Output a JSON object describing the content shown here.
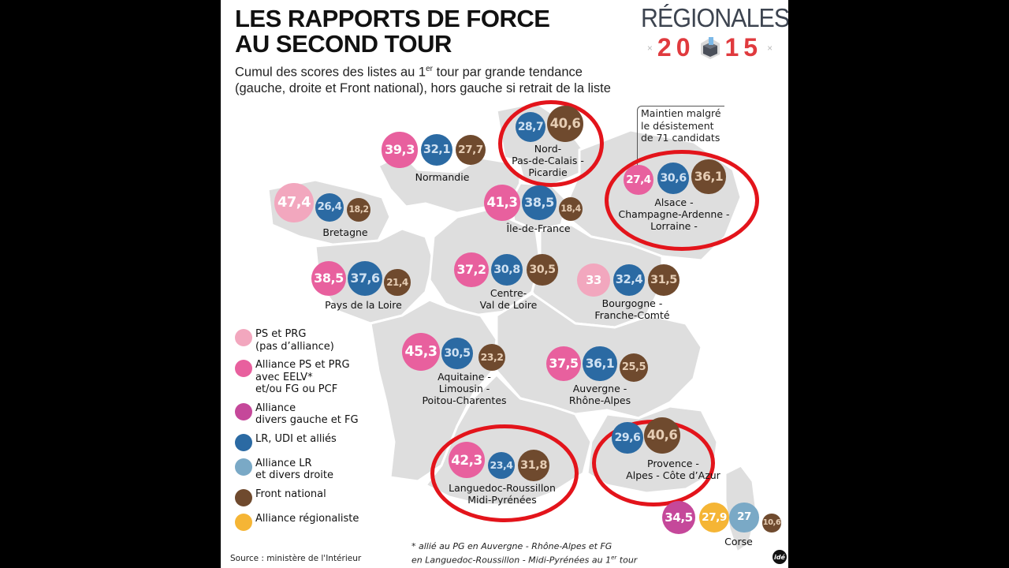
{
  "header": {
    "title_line1": "LES RAPPORTS DE FORCE",
    "title_line2": "AU SECOND TOUR",
    "subtitle_line1_pre": "Cumul des scores des listes au 1",
    "subtitle_line1_sup": "er",
    "subtitle_line1_post": " tour par grande tendance",
    "subtitle_line2": "(gauche, droite et Front national), hors gauche si retrait de la liste"
  },
  "logo": {
    "word": "RÉGIONALES",
    "year_left": "20",
    "year_right": "15",
    "icon": "ballot-box-icon"
  },
  "colors": {
    "ps_prg": "#f2a7be",
    "alliance_ps": "#e8609e",
    "alliance_dvg_fg": "#c5489a",
    "lr_udi": "#2b6aa3",
    "alliance_lr_dvd": "#7aa9c6",
    "fn": "#6f4a2e",
    "regionaliste": "#f5b535",
    "highlight_ring": "#e3141b",
    "map_fill": "#dedede",
    "fn_text": "#e6cdb4",
    "lr_text": "#cfe1f2"
  },
  "callout": {
    "line1": "Maintien malgré",
    "line2": "le désistement",
    "line3": "de 71 candidats"
  },
  "regions": [
    {
      "name_lines": [
        "Normandie"
      ],
      "scores": [
        {
          "v": "39,3",
          "party": "alliance_ps"
        },
        {
          "v": "32,1",
          "party": "lr_udi"
        },
        {
          "v": "27,7",
          "party": "fn"
        }
      ],
      "highlighted": false
    },
    {
      "name_lines": [
        "Nord-",
        "Pas-de-Calais -",
        "Picardie"
      ],
      "scores": [
        {
          "v": "28,7",
          "party": "lr_udi"
        },
        {
          "v": "40,6",
          "party": "fn"
        }
      ],
      "highlighted": true
    },
    {
      "name_lines": [
        "Bretagne"
      ],
      "scores": [
        {
          "v": "47,4",
          "party": "ps_prg"
        },
        {
          "v": "26,4",
          "party": "lr_udi"
        },
        {
          "v": "18,2",
          "party": "fn"
        }
      ],
      "highlighted": false
    },
    {
      "name_lines": [
        "Île-de-France"
      ],
      "scores": [
        {
          "v": "41,3",
          "party": "alliance_ps"
        },
        {
          "v": "38,5",
          "party": "lr_udi"
        },
        {
          "v": "18,4",
          "party": "fn"
        }
      ],
      "highlighted": false
    },
    {
      "name_lines": [
        "Alsace -",
        "Champagne-Ardenne -",
        "Lorraine -"
      ],
      "scores": [
        {
          "v": "27,4",
          "party": "alliance_ps"
        },
        {
          "v": "30,6",
          "party": "lr_udi"
        },
        {
          "v": "36,1",
          "party": "fn"
        }
      ],
      "highlighted": true
    },
    {
      "name_lines": [
        "Pays de la Loire"
      ],
      "scores": [
        {
          "v": "38,5",
          "party": "alliance_ps"
        },
        {
          "v": "37,6",
          "party": "lr_udi"
        },
        {
          "v": "21,4",
          "party": "fn"
        }
      ],
      "highlighted": false
    },
    {
      "name_lines": [
        "Centre-",
        "Val de Loire"
      ],
      "scores": [
        {
          "v": "37,2",
          "party": "alliance_ps"
        },
        {
          "v": "30,8",
          "party": "lr_udi"
        },
        {
          "v": "30,5",
          "party": "fn"
        }
      ],
      "highlighted": false
    },
    {
      "name_lines": [
        "Bourgogne -",
        "Franche-Comté"
      ],
      "scores": [
        {
          "v": "33",
          "party": "ps_prg"
        },
        {
          "v": "32,4",
          "party": "lr_udi"
        },
        {
          "v": "31,5",
          "party": "fn"
        }
      ],
      "highlighted": false
    },
    {
      "name_lines": [
        "Aquitaine -",
        "Limousin -",
        "Poitou-Charentes"
      ],
      "scores": [
        {
          "v": "45,3",
          "party": "alliance_ps"
        },
        {
          "v": "30,5",
          "party": "lr_udi"
        },
        {
          "v": "23,2",
          "party": "fn"
        }
      ],
      "highlighted": false
    },
    {
      "name_lines": [
        "Auvergne -",
        "Rhône-Alpes"
      ],
      "scores": [
        {
          "v": "37,5",
          "party": "alliance_ps"
        },
        {
          "v": "36,1",
          "party": "lr_udi"
        },
        {
          "v": "25,5",
          "party": "fn"
        }
      ],
      "highlighted": false
    },
    {
      "name_lines": [
        "Languedoc-Roussillon",
        "Midi-Pyrénées"
      ],
      "scores": [
        {
          "v": "42,3",
          "party": "alliance_ps"
        },
        {
          "v": "23,4",
          "party": "lr_udi"
        },
        {
          "v": "31,8",
          "party": "fn"
        }
      ],
      "highlighted": true
    },
    {
      "name_lines": [
        "Provence -",
        "Alpes - Côte d’Azur"
      ],
      "scores": [
        {
          "v": "29,6",
          "party": "lr_udi"
        },
        {
          "v": "40,6",
          "party": "fn"
        }
      ],
      "highlighted": true
    },
    {
      "name_lines": [
        "Corse"
      ],
      "scores": [
        {
          "v": "34,5",
          "party": "alliance_dvg_fg"
        },
        {
          "v": "27,9",
          "party": "regionaliste"
        },
        {
          "v": "27",
          "party": "alliance_lr_dvd"
        },
        {
          "v": "10,6",
          "party": "fn"
        }
      ],
      "highlighted": false
    }
  ],
  "legend": [
    {
      "party": "ps_prg",
      "lines": [
        "PS et PRG",
        "(pas d’alliance)"
      ]
    },
    {
      "party": "alliance_ps",
      "lines": [
        "Alliance PS et PRG",
        "avec EELV*",
        "et/ou FG ou PCF"
      ]
    },
    {
      "party": "alliance_dvg_fg",
      "lines": [
        "Alliance",
        "divers gauche et FG"
      ]
    },
    {
      "party": "lr_udi",
      "lines": [
        "LR, UDI et alliés"
      ]
    },
    {
      "party": "alliance_lr_dvd",
      "lines": [
        "Alliance LR",
        "et divers droite"
      ]
    },
    {
      "party": "fn",
      "lines": [
        "Front national"
      ]
    },
    {
      "party": "regionaliste",
      "lines": [
        "Alliance régionaliste"
      ]
    }
  ],
  "footnote": {
    "line1": "* allié au PG en Auvergne - Rhône-Alpes  et FG",
    "line2_pre": "en Languedoc-Roussillon - Midi-Pyrénées au 1",
    "line2_sup": "er",
    "line2_post": " tour"
  },
  "source": "Source : ministère de l'Intérieur",
  "credit": "idé"
}
